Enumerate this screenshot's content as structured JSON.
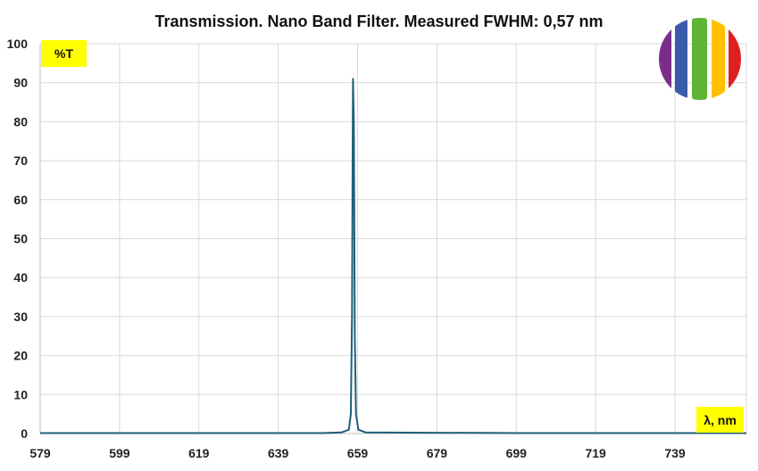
{
  "chart_data": {
    "type": "line",
    "title": "Transmission. Nano Band Filter. Measured FWHM: 0,57 nm",
    "ylabel": "%T",
    "xlabel": "λ, nm",
    "xlim": [
      579,
      757
    ],
    "ylim": [
      0,
      100
    ],
    "x_ticks": [
      579,
      599,
      619,
      639,
      659,
      679,
      699,
      719,
      739
    ],
    "y_ticks": [
      0,
      10,
      20,
      30,
      40,
      50,
      60,
      70,
      80,
      90,
      100
    ],
    "grid": true,
    "series": [
      {
        "color": "#1f5f7a",
        "x": [
          579,
          650,
          655,
          656.8,
          657.3,
          657.6,
          657.75,
          657.85,
          657.95,
          658.05,
          658.15,
          658.3,
          658.6,
          659.2,
          661,
          700,
          757
        ],
        "y": [
          0.1,
          0.1,
          0.3,
          1.0,
          5,
          30,
          70,
          91,
          85,
          80,
          60,
          25,
          5,
          1,
          0.3,
          0.1,
          0.1
        ]
      }
    ],
    "logo_colors": [
      "#7b2d8b",
      "#3a5ba9",
      "#5db533",
      "#ffc000",
      "#e02020"
    ]
  }
}
